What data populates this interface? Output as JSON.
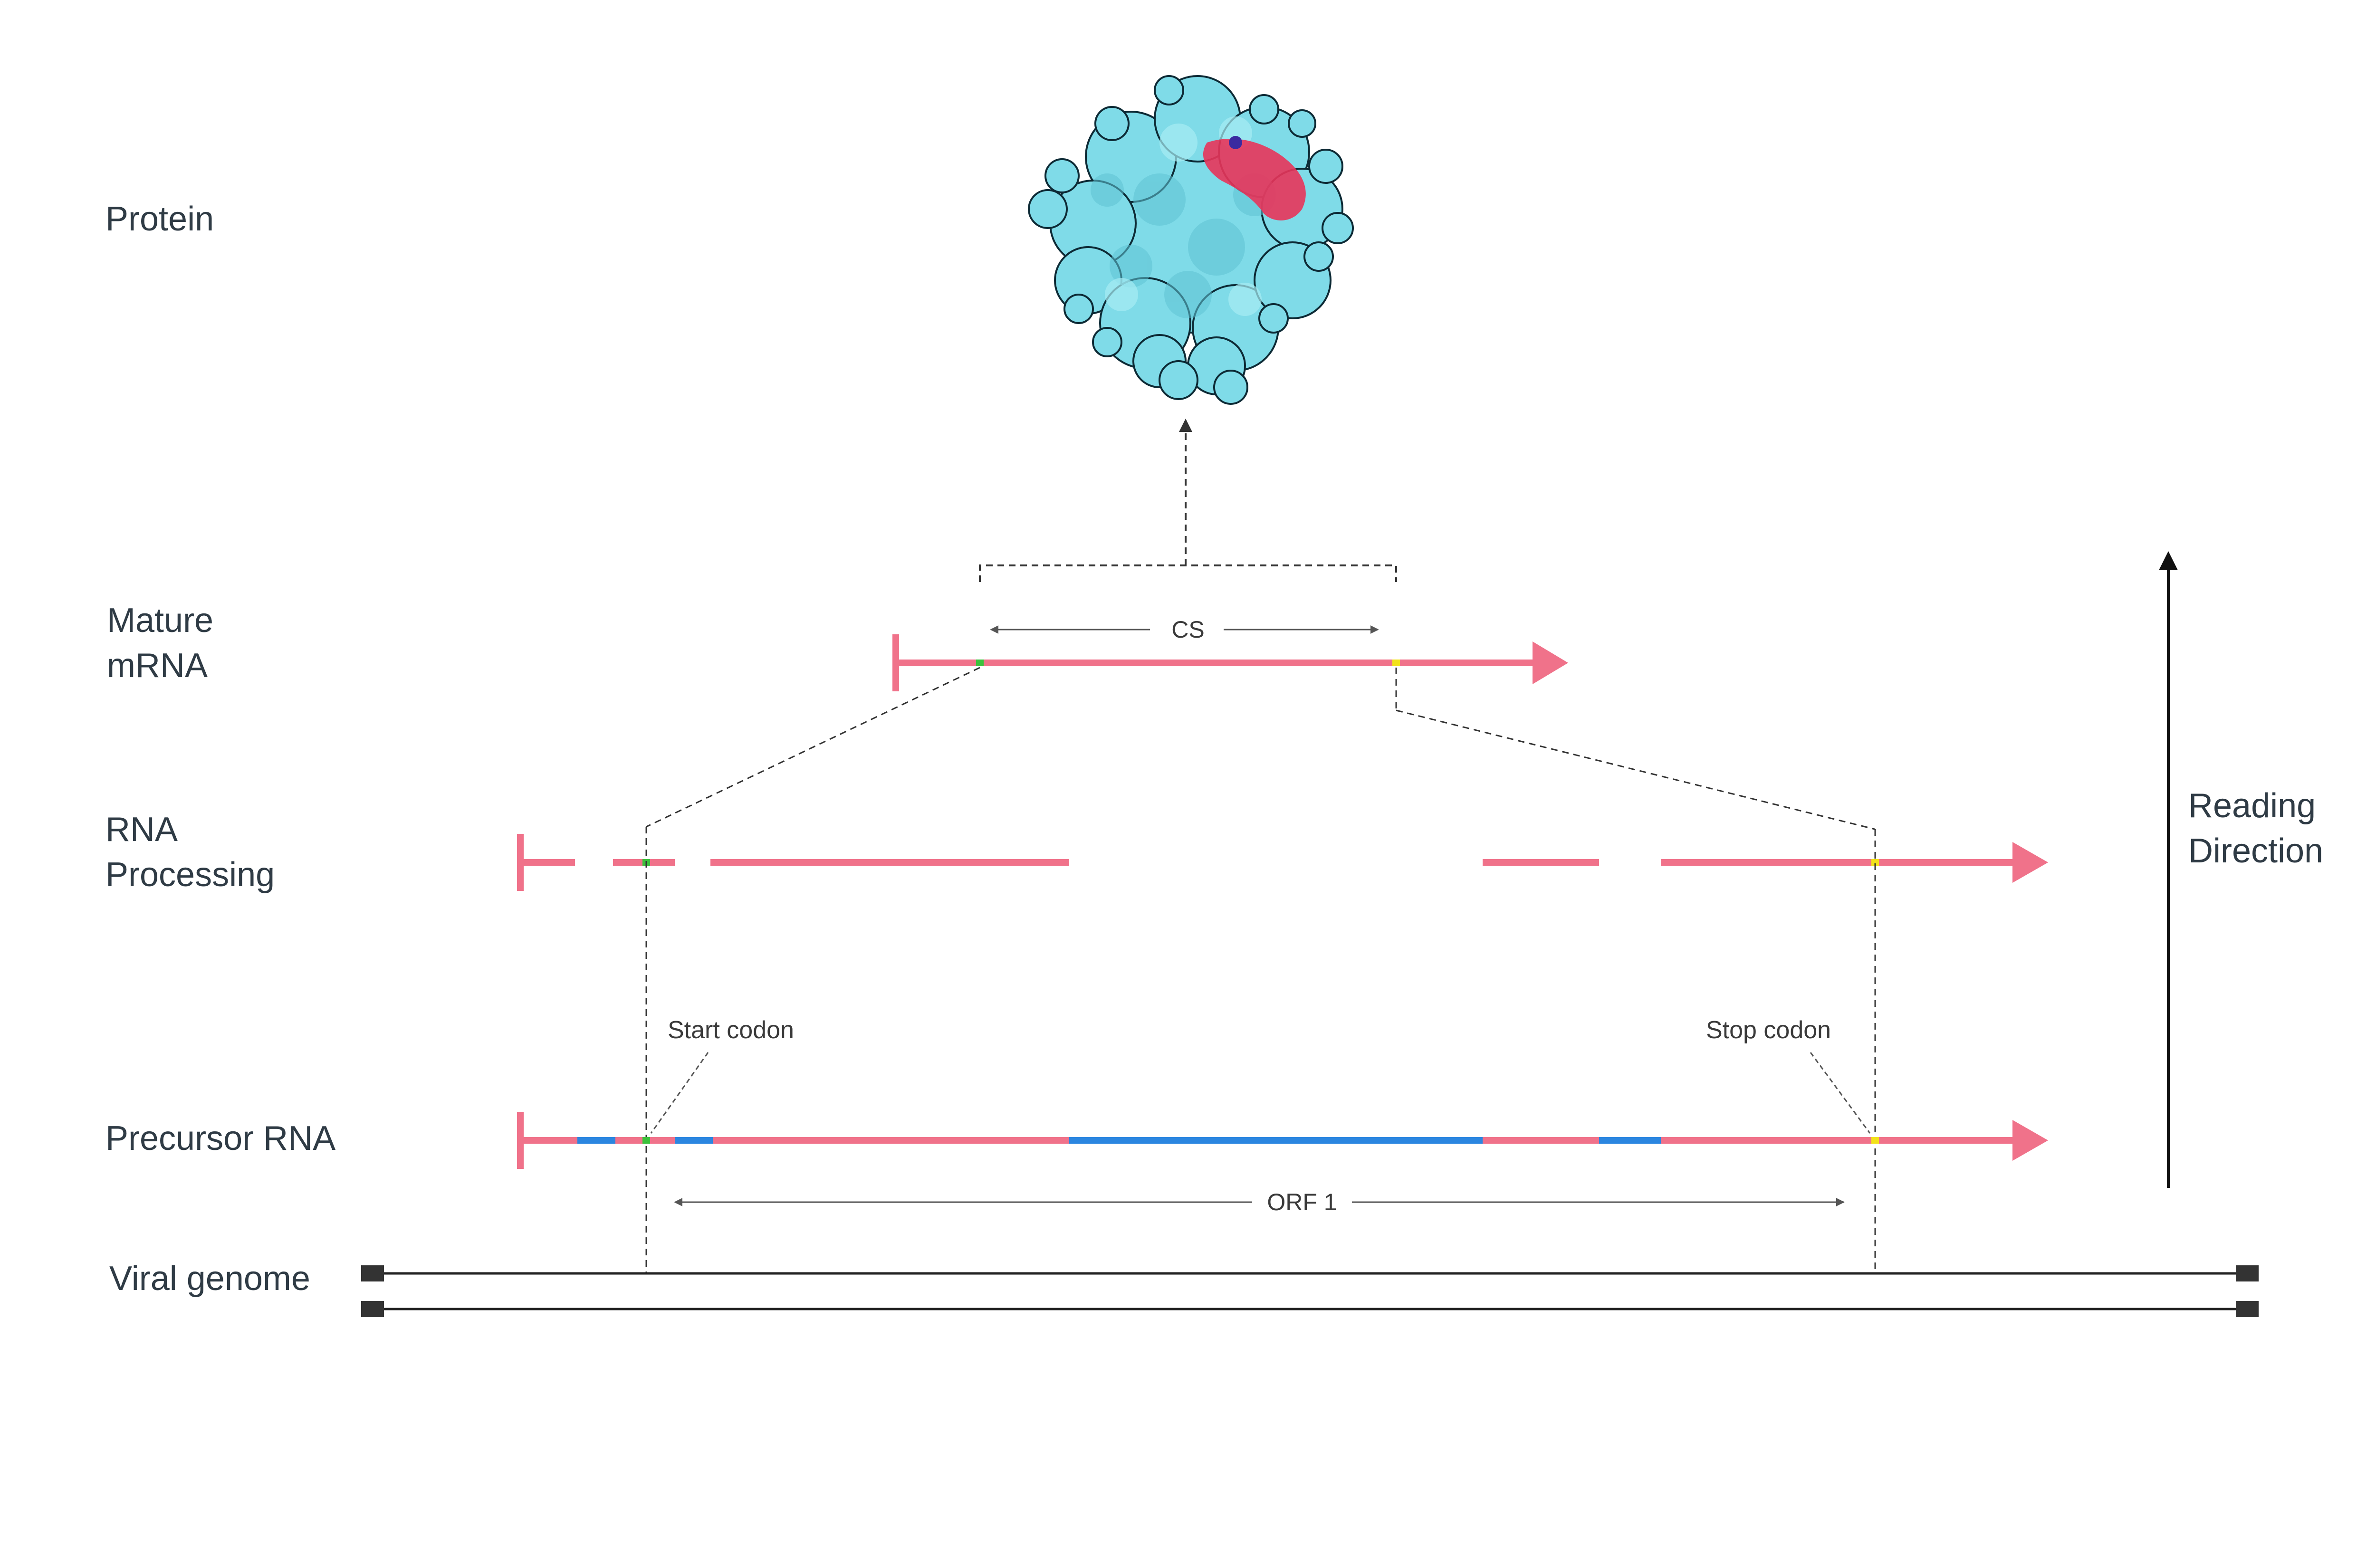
{
  "rows": {
    "protein": "Protein",
    "mature_line1": "Mature",
    "mature_line2": "mRNA",
    "processing_line1": "RNA",
    "processing_line2": "Processing",
    "precursor": "Precursor RNA",
    "genome": "Viral genome"
  },
  "annotations": {
    "start_codon": "Start codon",
    "stop_codon": "Stop codon",
    "cs": "CS",
    "orf": "ORF 1"
  },
  "reading_direction": {
    "line1": "Reading",
    "line2": "Direction"
  },
  "colors": {
    "exon": "#f0728a",
    "intron": "#2b86e0",
    "start_marker": "#3cc13c",
    "stop_marker": "#f2e21a",
    "protein_body": "#7fdbe8",
    "protein_highlight": "#e8345a",
    "text": "#2f3b45",
    "genome": "#222222"
  },
  "icons": {
    "protein": "protein-structure-icon",
    "reading_arrow": "arrow-up-icon"
  }
}
